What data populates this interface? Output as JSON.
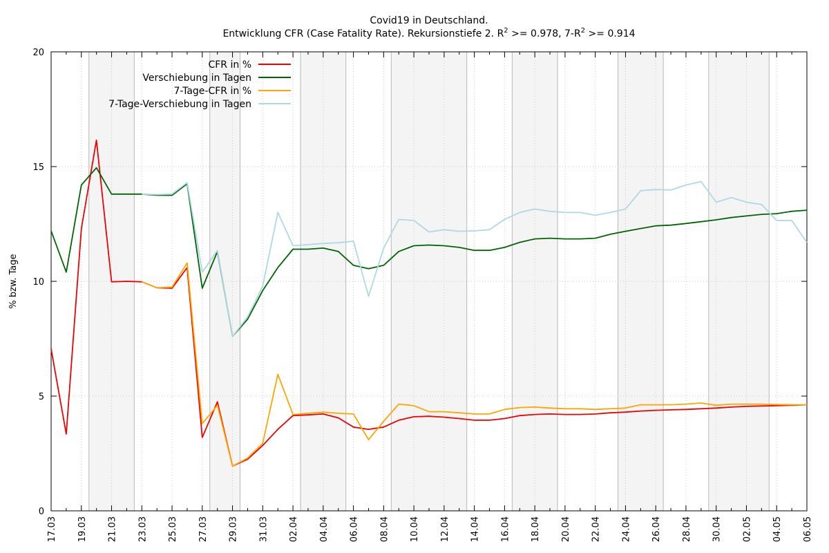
{
  "chart_data": {
    "type": "line",
    "title": "Covid19 in Deutschland.",
    "subtitle": {
      "prefix": "Entwicklung CFR (Case Fatality Rate). Rekursionstiefe 2. R",
      "sup1": "2",
      "middle": " >= 0.978, 7-R",
      "sup2": "2",
      "suffix": " >= 0.914"
    },
    "ylabel": "% bzw. Tage",
    "xlabel": "",
    "ylim": [
      0,
      20
    ],
    "yticks": [
      "0",
      "5",
      "10",
      "15",
      "20"
    ],
    "x_dates": [
      "17.03",
      "18.03",
      "19.03",
      "20.03",
      "21.03",
      "22.03",
      "23.03",
      "24.03",
      "25.03",
      "26.03",
      "27.03",
      "28.03",
      "29.03",
      "30.03",
      "31.03",
      "01.04",
      "02.04",
      "03.04",
      "04.04",
      "05.04",
      "06.04",
      "07.04",
      "08.04",
      "09.04",
      "10.04",
      "11.04",
      "12.04",
      "13.04",
      "14.04",
      "15.04",
      "16.04",
      "17.04",
      "18.04",
      "19.04",
      "20.04",
      "21.04",
      "22.04",
      "23.04",
      "24.04",
      "25.04",
      "26.04",
      "27.04",
      "28.04",
      "29.04",
      "30.04",
      "01.05",
      "02.05",
      "03.05",
      "04.05",
      "05.05",
      "06.05"
    ],
    "xtick_labels": [
      "17.03",
      "19.03",
      "21.03",
      "23.03",
      "25.03",
      "27.03",
      "29.03",
      "31.03",
      "02.04",
      "04.04",
      "06.04",
      "08.04",
      "10.04",
      "12.04",
      "14.04",
      "16.04",
      "18.04",
      "20.04",
      "22.04",
      "24.04",
      "26.04",
      "28.04",
      "30.04",
      "02.05",
      "04.05",
      "06.05"
    ],
    "weekend_bands": [
      [
        "20.03",
        "22.03"
      ],
      [
        "28.03",
        "29.03"
      ],
      [
        "03.04",
        "05.04"
      ],
      [
        "09.04",
        "13.04"
      ],
      [
        "17.04",
        "19.04"
      ],
      [
        "24.04",
        "26.04"
      ],
      [
        "30.04",
        "03.05"
      ]
    ],
    "grid": true,
    "legend_position": "top-left",
    "series": [
      {
        "name": "CFR in %",
        "color": "#ee0000",
        "start": "17.03",
        "values": [
          7.05,
          3.35,
          12.3,
          16.15,
          9.98,
          10.0,
          9.98,
          9.72,
          9.7,
          10.6,
          3.2,
          4.75,
          1.95,
          2.25,
          2.85,
          3.55,
          4.15,
          4.18,
          4.22,
          4.05,
          3.65,
          3.55,
          3.65,
          3.95,
          4.1,
          4.12,
          4.08,
          4.02,
          3.95,
          3.95,
          4.02,
          4.15,
          4.2,
          4.22,
          4.2,
          4.2,
          4.22,
          4.27,
          4.3,
          4.35,
          4.38,
          4.4,
          4.42,
          4.45,
          4.48,
          4.52,
          4.55,
          4.57,
          4.58,
          4.6,
          4.62
        ]
      },
      {
        "name": "Verschiebung in Tagen",
        "color": "#006400",
        "start": "17.03",
        "values": [
          12.2,
          10.4,
          14.2,
          14.95,
          13.8,
          13.8,
          13.8,
          13.75,
          13.75,
          14.25,
          9.7,
          11.3,
          7.6,
          8.35,
          9.6,
          10.6,
          11.4,
          11.4,
          11.45,
          11.3,
          10.7,
          10.55,
          10.7,
          11.3,
          11.55,
          11.58,
          11.55,
          11.48,
          11.35,
          11.35,
          11.48,
          11.7,
          11.85,
          11.88,
          11.85,
          11.85,
          11.88,
          12.05,
          12.18,
          12.3,
          12.42,
          12.45,
          12.52,
          12.6,
          12.68,
          12.78,
          12.85,
          12.92,
          12.95,
          13.05,
          13.1
        ]
      },
      {
        "name": "7-Tage-CFR in %",
        "color": "#ffa500",
        "start": "23.03",
        "values": [
          9.98,
          9.72,
          9.75,
          10.8,
          3.8,
          4.6,
          1.95,
          2.3,
          2.95,
          5.95,
          4.2,
          4.25,
          4.3,
          4.25,
          4.22,
          3.1,
          3.9,
          4.65,
          4.58,
          4.32,
          4.32,
          4.27,
          4.22,
          4.22,
          4.42,
          4.5,
          4.52,
          4.48,
          4.45,
          4.45,
          4.42,
          4.45,
          4.48,
          4.62,
          4.62,
          4.62,
          4.65,
          4.7,
          4.6,
          4.65,
          4.65,
          4.65,
          4.63,
          4.62,
          4.62
        ]
      },
      {
        "name": "7-Tage-Verschiebung in Tagen",
        "color": "#add8e6",
        "start": "23.03",
        "values": [
          13.8,
          13.78,
          13.8,
          14.3,
          10.4,
          11.35,
          7.6,
          8.45,
          9.8,
          13.0,
          11.55,
          11.6,
          11.65,
          11.68,
          11.75,
          9.35,
          11.45,
          12.7,
          12.65,
          12.15,
          12.25,
          12.18,
          12.2,
          12.25,
          12.7,
          13.0,
          13.15,
          13.05,
          13.0,
          13.0,
          12.88,
          13.0,
          13.15,
          13.95,
          14.0,
          13.98,
          14.2,
          14.35,
          13.45,
          13.65,
          13.45,
          13.35,
          12.65,
          12.65,
          11.7
        ]
      }
    ]
  }
}
